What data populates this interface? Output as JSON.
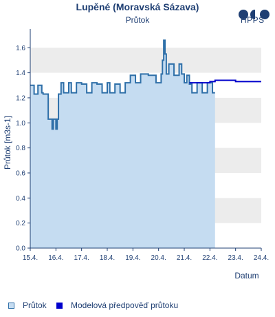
{
  "header": {
    "title": "Lupěné (Moravská Sázava)",
    "subtitle": "Průtok",
    "logo_text": "HPPS"
  },
  "legend": {
    "items": [
      {
        "label": "Průtok",
        "color": "#c5dcf1",
        "border": "#2e6fa8"
      },
      {
        "label": "Modelová předpověď průtoku",
        "color": "#0000cc",
        "border": "#0000cc"
      }
    ]
  },
  "chart_data": {
    "type": "line",
    "ylabel": "Průtok [m3s-1]",
    "xlabel": "Datum",
    "ylim": [
      0,
      1.75
    ],
    "y_ticks": [
      "0.0",
      "0.2",
      "0.4",
      "0.6",
      "0.8",
      "1.0",
      "1.2",
      "1.4",
      "1.6"
    ],
    "x_ticks": [
      "15.4.",
      "16.4.",
      "17.4.",
      "18.4.",
      "19.4.",
      "20.4.",
      "21.4.",
      "22.4.",
      "23.4.",
      "24.4."
    ],
    "xlim_days": [
      15.0,
      24.0
    ],
    "grid": "horizontal bands",
    "colors": {
      "observed_line": "#2e6fa8",
      "observed_fill": "#c5dcf1",
      "forecast": "#0000cc",
      "band": "#ececec",
      "axis": "#1f3f73"
    },
    "series": [
      {
        "name": "Průtok",
        "x": [
          15.0,
          15.15,
          15.3,
          15.45,
          15.5,
          15.7,
          15.85,
          15.9,
          16.0,
          16.05,
          16.1,
          16.2,
          16.3,
          16.5,
          16.6,
          16.8,
          17.0,
          17.2,
          17.4,
          17.6,
          17.8,
          18.0,
          18.1,
          18.3,
          18.5,
          18.7,
          18.9,
          19.1,
          19.3,
          19.6,
          19.9,
          20.1,
          20.15,
          20.2,
          20.25,
          20.3,
          20.4,
          20.6,
          20.8,
          20.9,
          21.0,
          21.1,
          21.2,
          21.3,
          21.5,
          21.7,
          21.9,
          22.1,
          22.2
        ],
        "y": [
          1.3,
          1.23,
          1.3,
          1.24,
          1.23,
          1.03,
          0.95,
          1.03,
          0.95,
          1.03,
          1.23,
          1.32,
          1.24,
          1.32,
          1.24,
          1.32,
          1.31,
          1.24,
          1.32,
          1.31,
          1.24,
          1.32,
          1.24,
          1.31,
          1.24,
          1.32,
          1.38,
          1.32,
          1.39,
          1.38,
          1.32,
          1.39,
          1.5,
          1.66,
          1.55,
          1.39,
          1.47,
          1.38,
          1.47,
          1.39,
          1.32,
          1.38,
          1.31,
          1.24,
          1.32,
          1.24,
          1.32,
          1.24,
          1.24
        ]
      },
      {
        "name": "Modelová předpověď průtoku",
        "x": [
          21.2,
          21.6,
          22.0,
          22.2,
          22.6,
          23.0,
          23.5,
          24.0
        ],
        "y": [
          1.32,
          1.32,
          1.33,
          1.34,
          1.34,
          1.33,
          1.33,
          1.33
        ]
      }
    ]
  }
}
